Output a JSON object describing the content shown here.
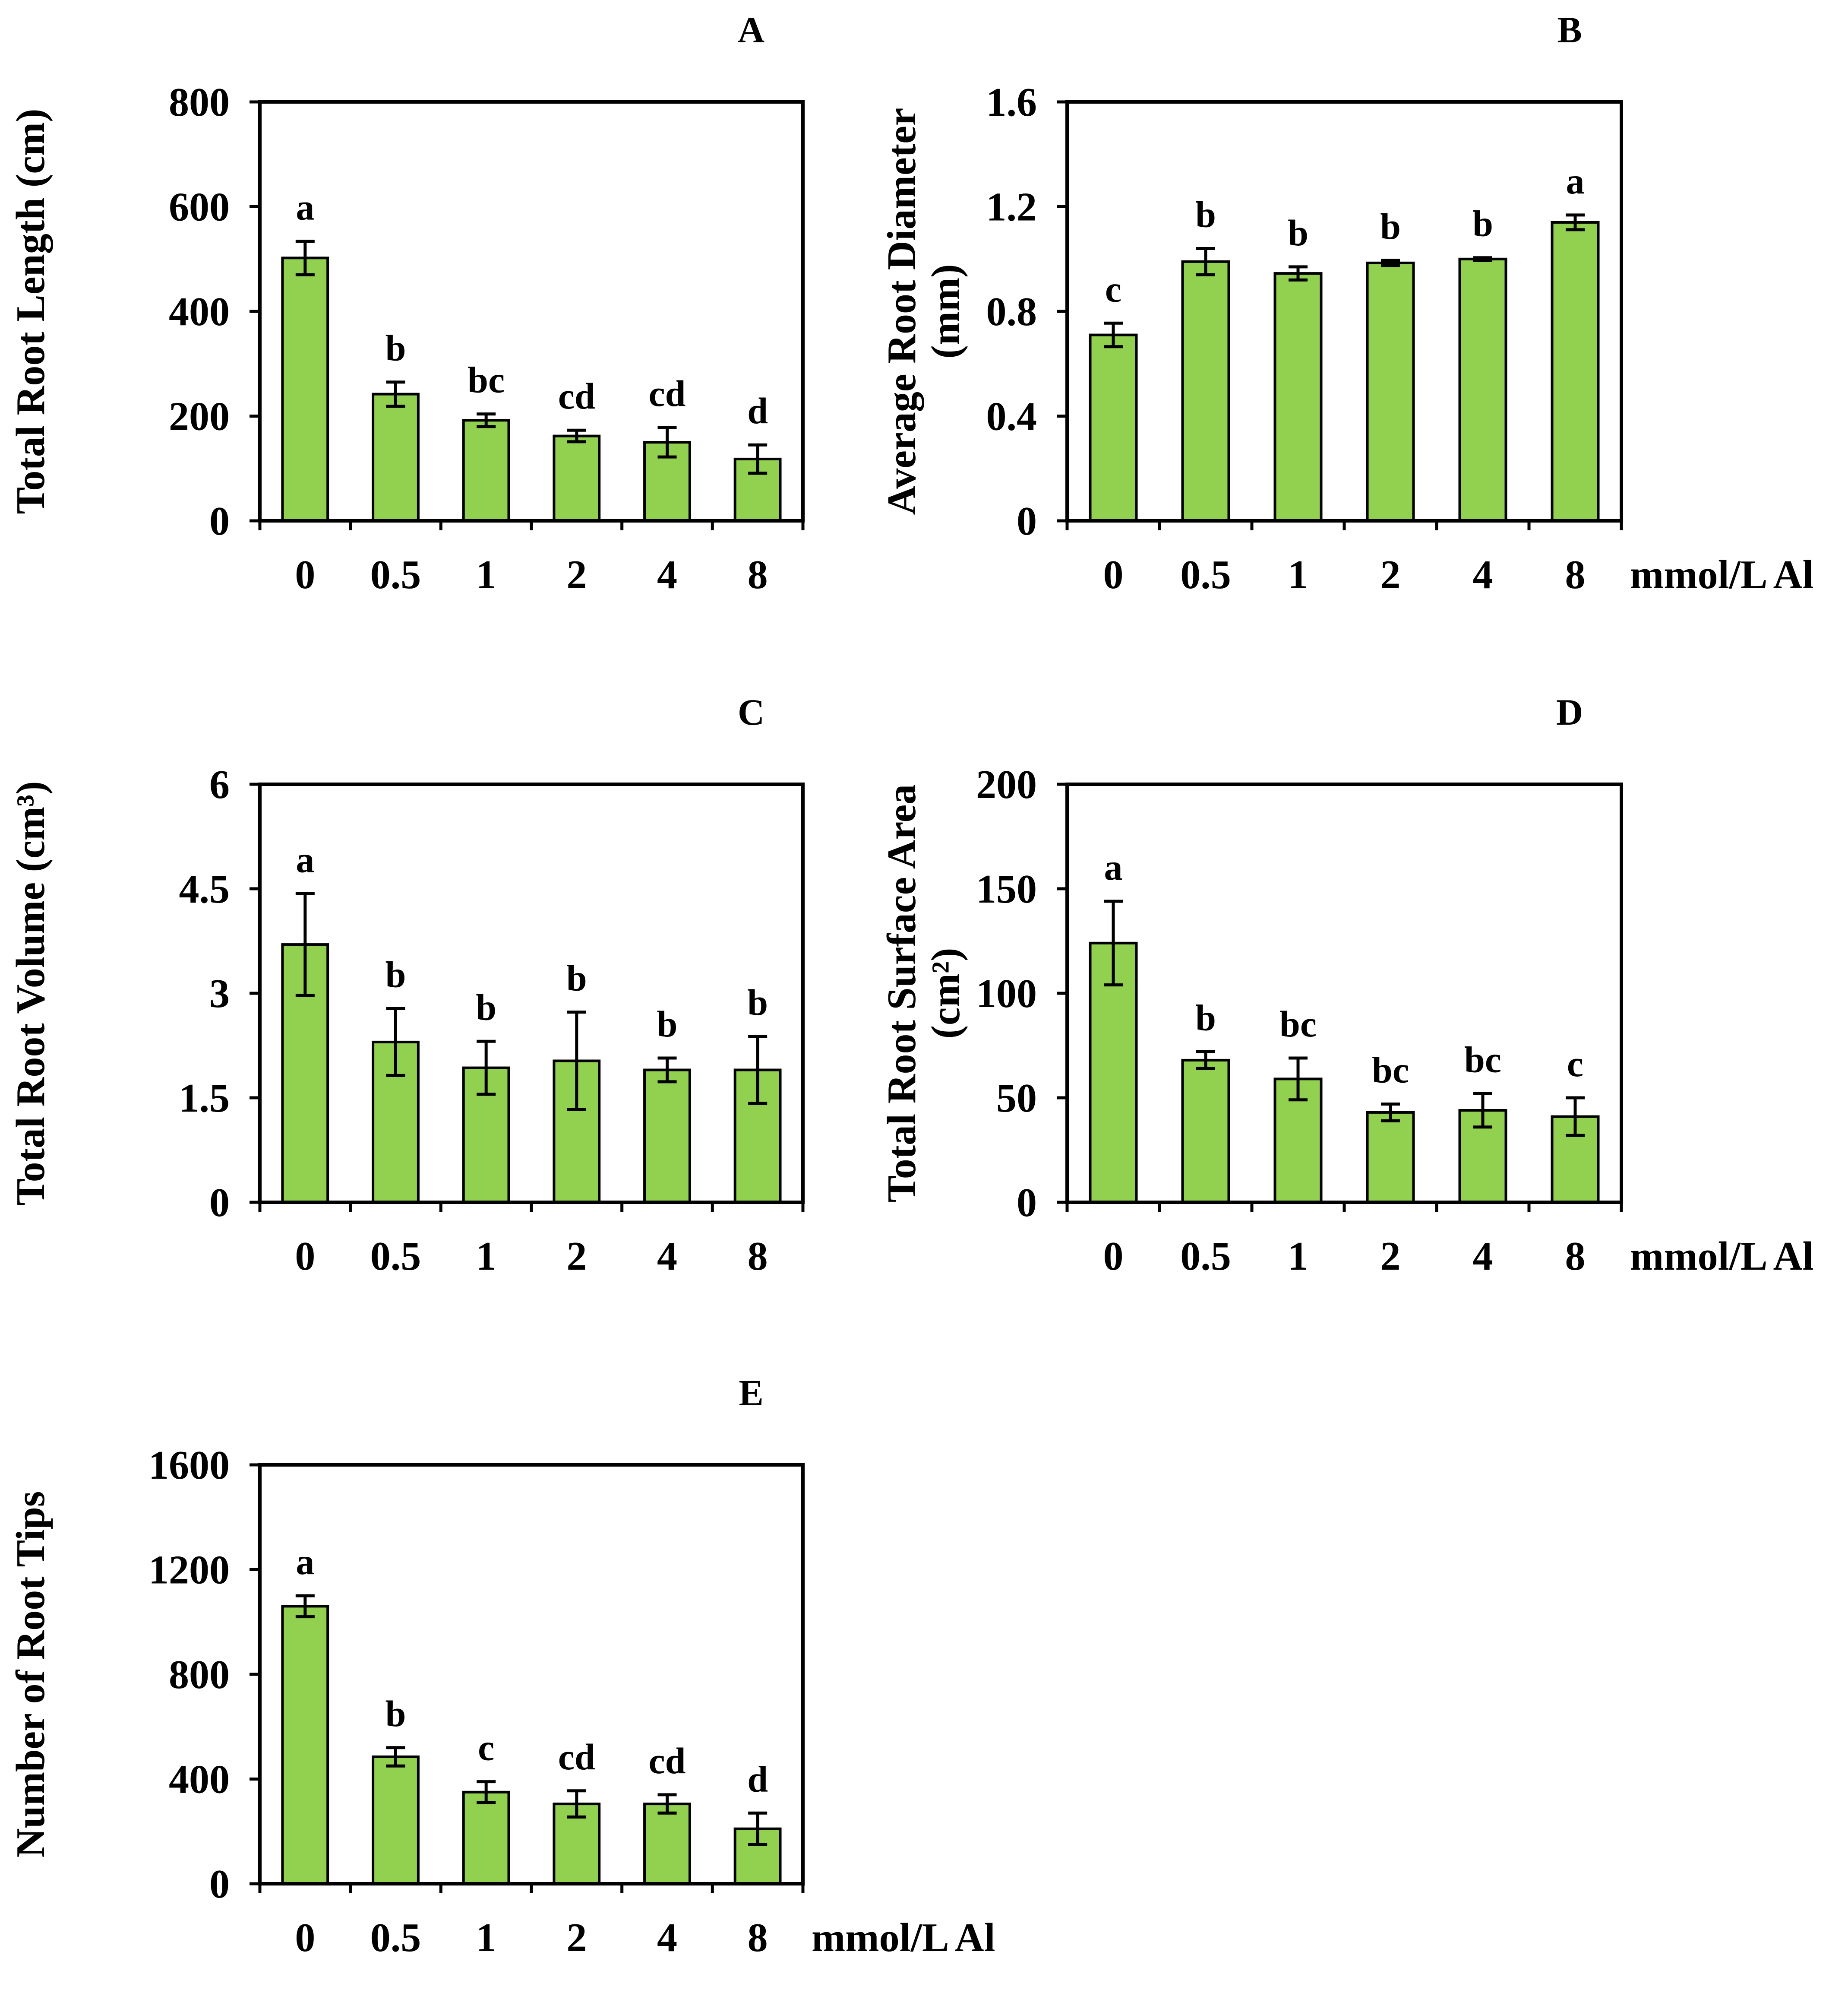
{
  "figure": {
    "bar_color": "#92D050",
    "bar_edge_color": "#000000"
  },
  "chart_data": [
    {
      "panel": "A",
      "type": "bar",
      "ylabel": "Total Root Length (cm)",
      "xlabel": "",
      "categories": [
        "0",
        "0.5",
        "1",
        "2",
        "4",
        "8"
      ],
      "values": [
        502,
        242,
        192,
        162,
        150,
        118
      ],
      "errors": [
        32,
        23,
        12,
        11,
        28,
        27
      ],
      "significance": [
        "a",
        "b",
        "bc",
        "cd",
        "cd",
        "d"
      ],
      "ylim": [
        0,
        800
      ],
      "yticks": [
        0,
        200,
        400,
        600,
        800
      ],
      "ytick_labels": [
        "0",
        "200",
        "400",
        "600",
        "800"
      ],
      "grid": false
    },
    {
      "panel": "B",
      "type": "bar",
      "ylabel_lines": [
        "Average Root Diameter",
        "(mm)"
      ],
      "xlabel": "mmol/L Al",
      "categories": [
        "0",
        "0.5",
        "1",
        "2",
        "4",
        "8"
      ],
      "values": [
        0.71,
        0.99,
        0.945,
        0.985,
        1.0,
        1.14
      ],
      "errors": [
        0.045,
        0.05,
        0.025,
        0.01,
        0.005,
        0.028
      ],
      "significance": [
        "c",
        "b",
        "b",
        "b",
        "b",
        "a"
      ],
      "ylim": [
        0,
        1.6
      ],
      "yticks": [
        0,
        0.4,
        0.8,
        1.2,
        1.6
      ],
      "ytick_labels": [
        "0",
        "0.4",
        "0.8",
        "1.2",
        "1.6"
      ],
      "grid": false
    },
    {
      "panel": "C",
      "type": "bar",
      "ylabel": "Total Root Volume (cm³)",
      "xlabel": "",
      "categories": [
        "0",
        "0.5",
        "1",
        "2",
        "4",
        "8"
      ],
      "values": [
        3.7,
        2.3,
        1.93,
        2.03,
        1.9,
        1.9
      ],
      "errors": [
        0.73,
        0.48,
        0.38,
        0.7,
        0.17,
        0.48
      ],
      "significance": [
        "a",
        "b",
        "b",
        "b",
        "b",
        "b"
      ],
      "ylim": [
        0,
        6
      ],
      "yticks": [
        0,
        1.5,
        3,
        4.5,
        6
      ],
      "ytick_labels": [
        "0",
        "1.5",
        "3",
        "4.5",
        "6"
      ],
      "grid": false
    },
    {
      "panel": "D",
      "type": "bar",
      "ylabel_lines": [
        "Total Root Surface Area",
        "(cm²)"
      ],
      "xlabel": "mmol/L Al",
      "categories": [
        "0",
        "0.5",
        "1",
        "2",
        "4",
        "8"
      ],
      "values": [
        124,
        68,
        59,
        43,
        44,
        41
      ],
      "errors": [
        20,
        4,
        10,
        4,
        8,
        9
      ],
      "significance": [
        "a",
        "b",
        "bc",
        "bc",
        "bc",
        "c"
      ],
      "ylim": [
        0,
        200
      ],
      "yticks": [
        0,
        50,
        100,
        150,
        200
      ],
      "ytick_labels": [
        "0",
        "50",
        "100",
        "150",
        "200"
      ],
      "grid": false
    },
    {
      "panel": "E",
      "type": "bar",
      "ylabel": "Number of Root Tips",
      "xlabel": "mmol/L Al",
      "categories": [
        "0",
        "0.5",
        "1",
        "2",
        "4",
        "8"
      ],
      "values": [
        1060,
        485,
        350,
        305,
        305,
        210
      ],
      "errors": [
        40,
        35,
        40,
        50,
        35,
        60
      ],
      "significance": [
        "a",
        "b",
        "c",
        "cd",
        "cd",
        "d"
      ],
      "ylim": [
        0,
        1600
      ],
      "yticks": [
        0,
        400,
        800,
        1200,
        1600
      ],
      "ytick_labels": [
        "0",
        "400",
        "800",
        "1200",
        "1600"
      ],
      "grid": false
    }
  ]
}
